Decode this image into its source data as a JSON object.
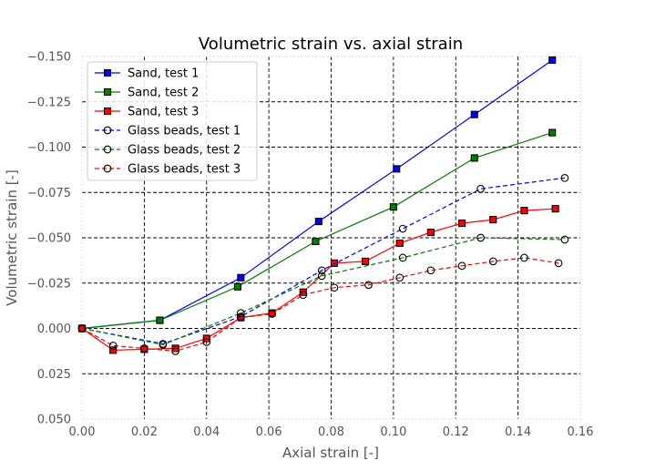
{
  "chart_data": {
    "type": "line",
    "title": "Volumetric strain vs. axial strain",
    "xlabel": "Axial strain [-]",
    "ylabel": "Volumetric strain [-]",
    "xlim": [
      0.0,
      0.16
    ],
    "ylim": [
      0.05,
      -0.15
    ],
    "y_axis_inverted": true,
    "grid": true,
    "legend_position": "top-left",
    "x_ticks": [
      0.0,
      0.02,
      0.04,
      0.06,
      0.08,
      0.1,
      0.12,
      0.14,
      0.16
    ],
    "x_tick_labels": [
      "0.00",
      "0.02",
      "0.04",
      "0.06",
      "0.08",
      "0.10",
      "0.12",
      "0.14",
      "0.16"
    ],
    "y_ticks": [
      -0.15,
      -0.125,
      -0.1,
      -0.075,
      -0.05,
      -0.025,
      0.0,
      0.025,
      0.05
    ],
    "y_tick_labels": [
      "−0.150",
      "−0.125",
      "−0.100",
      "−0.075",
      "−0.050",
      "−0.025",
      "0.000",
      "0.025",
      "0.050"
    ],
    "series": [
      {
        "name": "Sand, test 1",
        "color": "#0000ff",
        "linestyle": "solid",
        "marker": "square",
        "x": [
          0.0,
          0.025,
          0.051,
          0.076,
          0.101,
          0.126,
          0.151
        ],
        "y": [
          0.0,
          -0.0045,
          -0.028,
          -0.059,
          -0.088,
          -0.118,
          -0.148
        ]
      },
      {
        "name": "Sand, test 2",
        "color": "#008000",
        "linestyle": "solid",
        "marker": "square",
        "x": [
          0.0,
          0.025,
          0.05,
          0.075,
          0.1,
          0.126,
          0.151
        ],
        "y": [
          0.0,
          -0.0045,
          -0.023,
          -0.048,
          -0.067,
          -0.094,
          -0.108
        ]
      },
      {
        "name": "Sand, test 3",
        "color": "#ff0000",
        "linestyle": "solid",
        "marker": "square",
        "x": [
          0.0,
          0.01,
          0.02,
          0.03,
          0.04,
          0.051,
          0.061,
          0.071,
          0.081,
          0.091,
          0.102,
          0.112,
          0.122,
          0.132,
          0.142,
          0.152
        ],
        "y": [
          0.0,
          0.012,
          0.0115,
          0.011,
          0.0055,
          -0.006,
          -0.0085,
          -0.02,
          -0.036,
          -0.037,
          -0.047,
          -0.053,
          -0.058,
          -0.06,
          -0.065,
          -0.066
        ]
      },
      {
        "name": "Glass beads, test 1",
        "color": "#0000ff",
        "linestyle": "dashed",
        "marker": "circle",
        "x": [
          0.0,
          0.026,
          0.051,
          0.077,
          0.103,
          0.128,
          0.155
        ],
        "y": [
          0.0,
          0.0085,
          -0.0065,
          -0.032,
          -0.055,
          -0.077,
          -0.083
        ]
      },
      {
        "name": "Glass beads, test 2",
        "color": "#008000",
        "linestyle": "dashed",
        "marker": "circle",
        "x": [
          0.0,
          0.026,
          0.051,
          0.077,
          0.103,
          0.128,
          0.155
        ],
        "y": [
          0.0,
          0.009,
          -0.0085,
          -0.029,
          -0.039,
          -0.05,
          -0.049
        ]
      },
      {
        "name": "Glass beads, test 3",
        "color": "#ff0000",
        "linestyle": "dashed",
        "marker": "circle",
        "x": [
          0.0,
          0.01,
          0.02,
          0.03,
          0.04,
          0.051,
          0.061,
          0.071,
          0.081,
          0.092,
          0.102,
          0.112,
          0.122,
          0.132,
          0.142,
          0.153
        ],
        "y": [
          0.0,
          0.0095,
          0.011,
          0.0125,
          0.0075,
          -0.006,
          -0.008,
          -0.0185,
          -0.0225,
          -0.024,
          -0.028,
          -0.032,
          -0.0345,
          -0.037,
          -0.039,
          -0.036
        ]
      }
    ]
  }
}
